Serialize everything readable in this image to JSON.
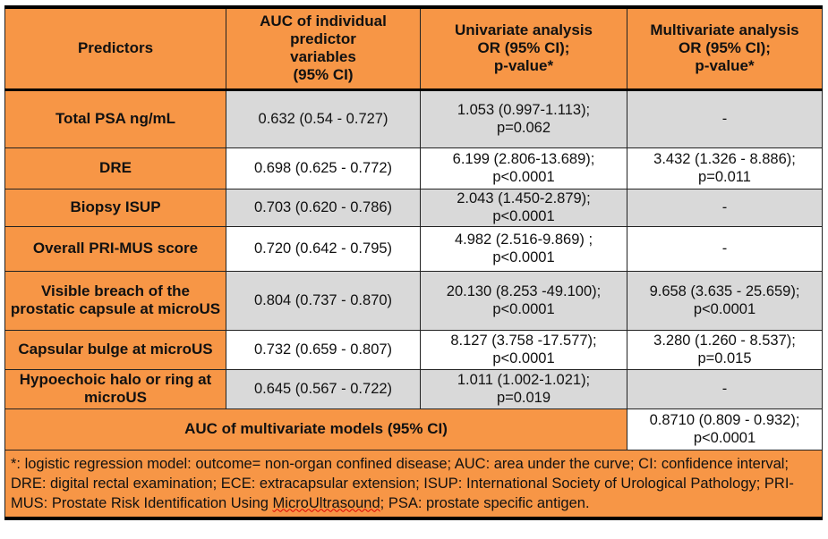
{
  "headers": [
    "Predictors",
    "AUC of individual predictor variables (95% CI)",
    "Univariate analysis OR (95% CI); p-value*",
    "Multivariate analysis OR (95% CI); p-value*"
  ],
  "header_lines": {
    "auc": [
      "AUC of individual",
      "predictor",
      "variables",
      "(95% CI)"
    ],
    "uni": [
      "Univariate analysis",
      "OR (95% CI);",
      "p-value*"
    ],
    "multi": [
      "Multivariate analysis",
      "OR (95% CI);",
      "p-value*"
    ]
  },
  "rows": [
    {
      "predictor": "Total PSA ng/mL",
      "auc": "0.632 (0.54 - 0.727)",
      "uni": [
        "1.053 (0.997-1.113);",
        "p=0.062"
      ],
      "multi": [
        "-",
        ""
      ]
    },
    {
      "predictor": "DRE",
      "auc": "0.698 (0.625 - 0.772)",
      "uni": [
        "6.199 (2.806-13.689);",
        "p<0.0001"
      ],
      "multi": [
        "3.432 (1.326 - 8.886);",
        "p=0.011"
      ]
    },
    {
      "predictor": "Biopsy ISUP",
      "auc": "0.703 (0.620 - 0.786)",
      "uni": [
        "2.043 (1.450-2.879);",
        "p<0.0001"
      ],
      "multi": [
        "-",
        ""
      ]
    },
    {
      "predictor": "Overall PRI-MUS score",
      "auc": "0.720 (0.642 - 0.795)",
      "uni": [
        "4.982 (2.516-9.869) ;",
        "p<0.0001"
      ],
      "multi": [
        "-",
        ""
      ]
    },
    {
      "predictor": "Visible breach of the prostatic capsule at microUS",
      "auc": "0.804 (0.737 - 0.870)",
      "uni": [
        "20.130 (8.253 -49.100);",
        "p<0.0001"
      ],
      "multi": [
        "9.658 (3.635 - 25.659);",
        "p<0.0001"
      ]
    },
    {
      "predictor": "Capsular bulge at microUS",
      "auc": "0.732 (0.659 - 0.807)",
      "uni": [
        "8.127 (3.758 -17.577);",
        "p<0.0001"
      ],
      "multi": [
        "3.280 (1.260 - 8.537);",
        "p=0.015"
      ]
    },
    {
      "predictor": "Hypoechoic halo or ring at microUS",
      "auc": "0.645 (0.567 - 0.722)",
      "uni": [
        "1.011 (1.002-1.021);",
        "p=0.019"
      ],
      "multi": [
        "-",
        ""
      ]
    }
  ],
  "model": {
    "label": "AUC of multivariate models (95% CI)",
    "value": [
      "0.8710 (0.809 - 0.932);",
      "p<0.0001"
    ]
  },
  "footnote": {
    "before": "*: logistic regression model: outcome= non-organ confined disease; AUC: area under the curve; CI: confidence interval; DRE: digital rectal examination; ECE: extracapsular extension; ISUP: International Society of Urological Pathology; PRI-MUS: Prostate Risk Identification Using ",
    "flagged": "MicroUltrasound",
    "after": "; PSA: prostate specific antigen."
  },
  "colors": {
    "orange": "#f79646",
    "gray": "#d9d9d9",
    "white": "#ffffff"
  }
}
